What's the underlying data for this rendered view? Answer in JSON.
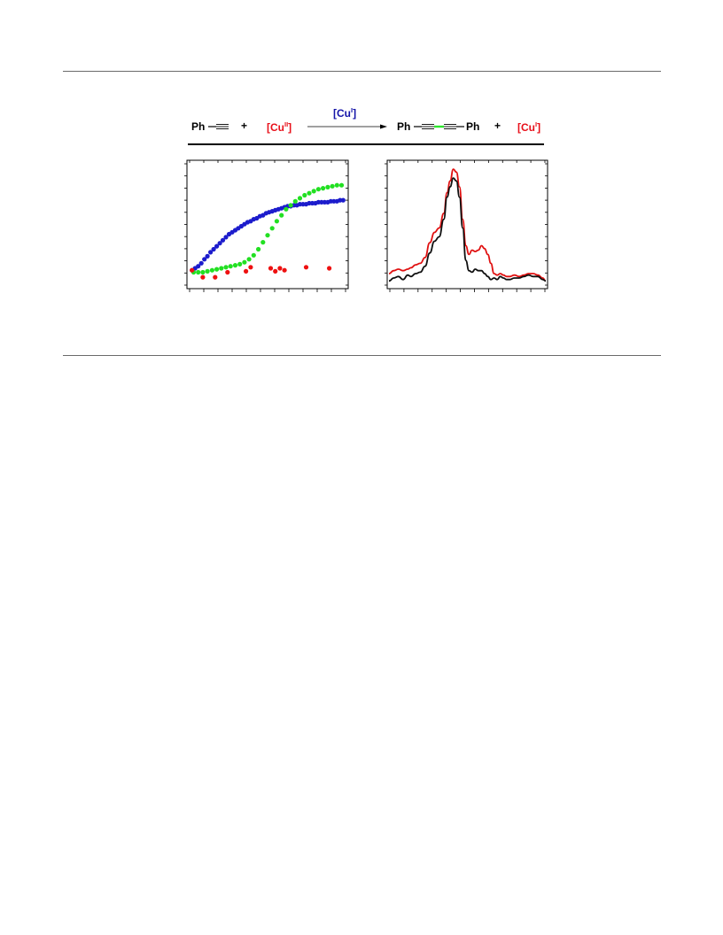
{
  "page": {
    "background": "#ffffff",
    "rule_color": "#6a6a6a"
  },
  "scheme": {
    "reactant_text": "Ph",
    "plus_1": "+",
    "oxidant": {
      "base": "[Cu",
      "superscript": "II",
      "close": "]",
      "color": "#e8101a"
    },
    "catalyst": {
      "base": "[Cu",
      "superscript": "I",
      "close": "]",
      "color": "#1414a8"
    },
    "product_left": "Ph",
    "product_right": "Ph",
    "plus_2": "+",
    "byproduct": {
      "base": "[Cu",
      "superscript": "I",
      "close": "]",
      "color": "#e8101a"
    },
    "bond_highlight_color": "#2ee82e"
  },
  "chart_data": [
    {
      "type": "scatter",
      "title": "",
      "xlabel": "",
      "ylabel": "",
      "xlim": [
        0,
        100
      ],
      "ylim": [
        0,
        100
      ],
      "grid": false,
      "tick_labels": "none",
      "series": [
        {
          "color": "#1c1ccc",
          "x": [
            1,
            3,
            5,
            7,
            9,
            11,
            13,
            15,
            17,
            19,
            21,
            23,
            25,
            27,
            29,
            31,
            33,
            35,
            37,
            39,
            41,
            43,
            45,
            47,
            49,
            51,
            53,
            55,
            57,
            59,
            61,
            63,
            65,
            67,
            69,
            71,
            73,
            75,
            77,
            79,
            81,
            83,
            85,
            87,
            89,
            91,
            93,
            95,
            97,
            99
          ],
          "y": [
            6,
            8,
            10,
            13,
            17,
            20,
            24,
            27,
            30,
            33,
            36,
            39,
            42,
            44,
            46,
            48,
            50,
            52,
            54,
            55,
            57,
            58,
            60,
            61,
            63,
            64,
            65,
            66,
            67,
            68,
            69,
            70,
            70,
            71,
            71,
            72,
            72,
            72,
            73,
            73,
            73,
            74,
            74,
            74,
            74,
            75,
            75,
            75,
            76,
            76
          ]
        },
        {
          "color": "#22e022",
          "x": [
            2,
            5,
            8,
            11,
            14,
            17,
            20,
            23,
            26,
            29,
            32,
            35,
            38,
            41,
            44,
            47,
            50,
            53,
            56,
            59,
            62,
            65,
            68,
            71,
            74,
            77,
            80,
            83,
            86,
            89,
            92,
            95,
            98
          ],
          "y": [
            4,
            4,
            4,
            5,
            6,
            7,
            8,
            9,
            10,
            11,
            12,
            14,
            17,
            21,
            27,
            34,
            41,
            48,
            55,
            61,
            67,
            71,
            75,
            78,
            81,
            83,
            85,
            87,
            88,
            89,
            90,
            91,
            91
          ]
        },
        {
          "color": "#ee1010",
          "x": [
            1,
            8,
            16,
            24,
            36,
            39,
            52,
            55,
            58,
            61,
            75,
            90
          ],
          "y": [
            6,
            -1,
            -1,
            4,
            5,
            9,
            8,
            5,
            8,
            6,
            9,
            8
          ]
        }
      ]
    },
    {
      "type": "line",
      "title": "",
      "xlabel": "",
      "ylabel": "",
      "xlim": [
        0,
        100
      ],
      "ylim": [
        0,
        100
      ],
      "grid": false,
      "tick_labels": "none",
      "series": [
        {
          "color": "#e01010",
          "x": [
            0,
            3,
            6,
            9,
            12,
            14,
            17,
            20,
            23,
            26,
            29,
            32,
            35,
            37,
            39,
            41,
            43,
            45,
            47,
            49,
            51,
            53,
            55,
            57,
            59,
            61,
            63,
            65,
            67,
            69,
            71,
            73,
            75,
            77,
            80,
            83,
            86,
            89,
            92,
            95,
            98,
            100
          ],
          "y": [
            3,
            5,
            6,
            5,
            6,
            7,
            9,
            10,
            14,
            24,
            31,
            34,
            44,
            58,
            66,
            74,
            72,
            62,
            40,
            22,
            16,
            19,
            18,
            19,
            22,
            20,
            16,
            10,
            3,
            2,
            3,
            2,
            1,
            1,
            2,
            1,
            2,
            3,
            3,
            2,
            0,
            -2
          ]
        },
        {
          "color": "#101010",
          "x": [
            0,
            3,
            6,
            9,
            12,
            14,
            17,
            20,
            23,
            26,
            29,
            32,
            35,
            37,
            39,
            41,
            43,
            45,
            47,
            49,
            51,
            53,
            55,
            57,
            59,
            61,
            63,
            65,
            67,
            69,
            71,
            73,
            75,
            77,
            80,
            83,
            86,
            89,
            92,
            95,
            98,
            100
          ],
          "y": [
            -2,
            0,
            1,
            -1,
            2,
            1,
            3,
            4,
            8,
            17,
            25,
            28,
            40,
            55,
            62,
            68,
            66,
            55,
            34,
            12,
            5,
            4,
            6,
            5,
            5,
            3,
            1,
            -1,
            0,
            -1,
            1,
            0,
            -1,
            -1,
            0,
            0,
            1,
            2,
            1,
            1,
            -1,
            -2
          ]
        }
      ]
    }
  ]
}
